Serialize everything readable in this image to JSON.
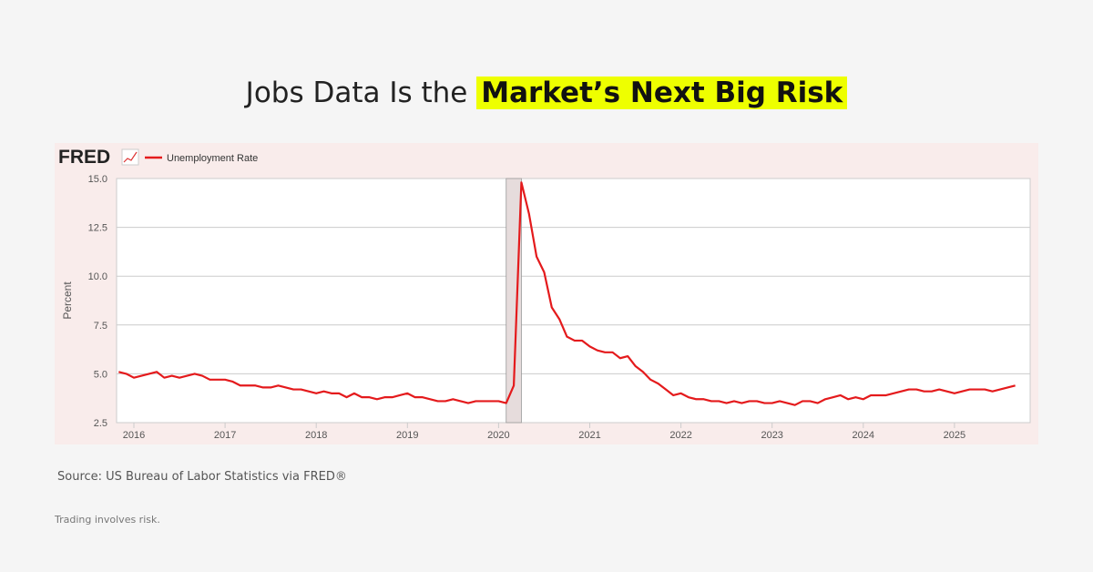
{
  "title": {
    "plain": "Jobs Data Is the",
    "highlight": "Market’s Next Big Risk"
  },
  "source": "Source: US Bureau of Labor Statistics via FRED®",
  "disclaimer": "Trading involves risk.",
  "logo": "FRED",
  "chart_data": {
    "type": "line",
    "ylabel": "Percent",
    "ylim": [
      2.5,
      15.0
    ],
    "yticks": [
      "2.5",
      "5.0",
      "7.5",
      "10.0",
      "12.5",
      "15.0"
    ],
    "xticks": [
      "2016",
      "2017",
      "2018",
      "2019",
      "2020",
      "2021",
      "2022",
      "2023",
      "2024",
      "2025"
    ],
    "grid": true,
    "legend_position": "top-left",
    "recession_shading": [
      "2020-02",
      "2020-04"
    ],
    "series": [
      {
        "name": "Unemployment Rate",
        "color": "#e41a1c",
        "start": "2015-11",
        "values": [
          5.1,
          5.0,
          4.8,
          4.9,
          5.0,
          5.1,
          4.8,
          4.9,
          4.8,
          4.9,
          5.0,
          4.9,
          4.7,
          4.7,
          4.7,
          4.6,
          4.4,
          4.4,
          4.4,
          4.3,
          4.3,
          4.4,
          4.3,
          4.2,
          4.2,
          4.1,
          4.0,
          4.1,
          4.0,
          4.0,
          3.8,
          4.0,
          3.8,
          3.8,
          3.7,
          3.8,
          3.8,
          3.9,
          4.0,
          3.8,
          3.8,
          3.7,
          3.6,
          3.6,
          3.7,
          3.6,
          3.5,
          3.6,
          3.6,
          3.6,
          3.6,
          3.5,
          4.4,
          14.8,
          13.2,
          11.0,
          10.2,
          8.4,
          7.8,
          6.9,
          6.7,
          6.7,
          6.4,
          6.2,
          6.1,
          6.1,
          5.8,
          5.9,
          5.4,
          5.1,
          4.7,
          4.5,
          4.2,
          3.9,
          4.0,
          3.8,
          3.7,
          3.7,
          3.6,
          3.6,
          3.5,
          3.6,
          3.5,
          3.6,
          3.6,
          3.5,
          3.5,
          3.6,
          3.5,
          3.4,
          3.6,
          3.6,
          3.5,
          3.7,
          3.8,
          3.9,
          3.7,
          3.8,
          3.7,
          3.9,
          3.9,
          3.9,
          4.0,
          4.1,
          4.2,
          4.2,
          4.1,
          4.1,
          4.2,
          4.1,
          4.0,
          4.1,
          4.2,
          4.2,
          4.2,
          4.1,
          4.2,
          4.3,
          4.4
        ]
      }
    ]
  }
}
